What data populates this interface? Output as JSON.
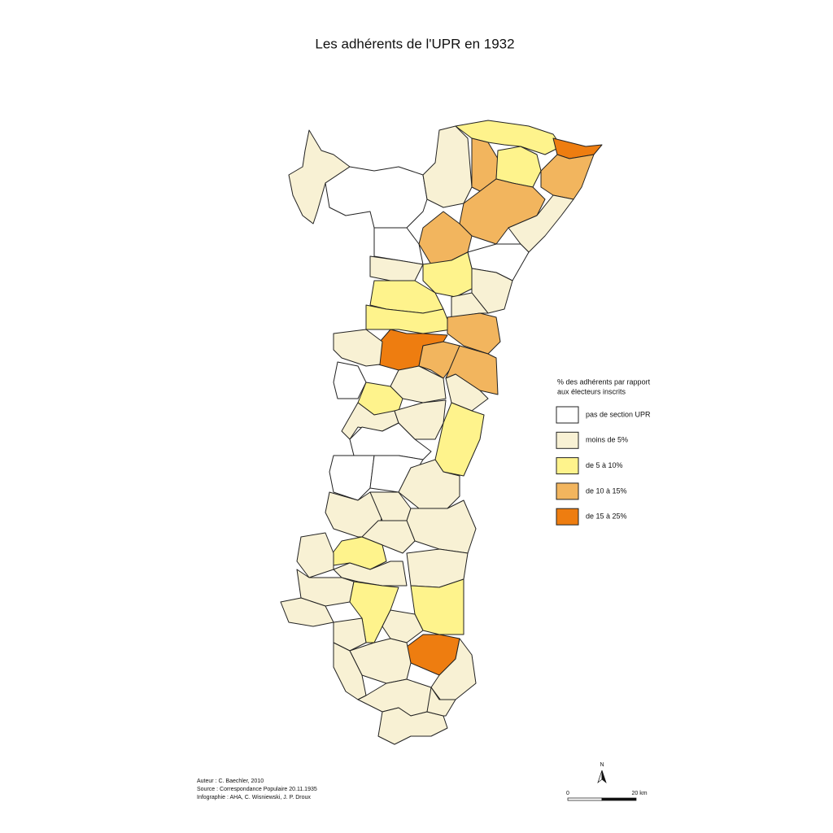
{
  "title": "Les adhérents de l'UPR en 1932",
  "legend": {
    "title_lines": [
      "% des adhérents par rapport",
      "aux électeurs inscrits"
    ],
    "items": [
      {
        "label": "pas de section UPR",
        "color": "#ffffff"
      },
      {
        "label": "moins de 5%",
        "color": "#f8f1d4"
      },
      {
        "label": "de 5 à 10%",
        "color": "#fef38c"
      },
      {
        "label": "de 10 à 15%",
        "color": "#f2b55e"
      },
      {
        "label": "de 15 à 25%",
        "color": "#ee7d10"
      }
    ]
  },
  "credits": [
    "Auteur : C. Baechler, 2010",
    "Source : Correspondance Populaire 20.11.1935",
    "Infographie : AHA, C. Wisniewski, J. P. Droux"
  ],
  "north": "N",
  "scale": {
    "start": "0",
    "end": "20 km"
  }
}
